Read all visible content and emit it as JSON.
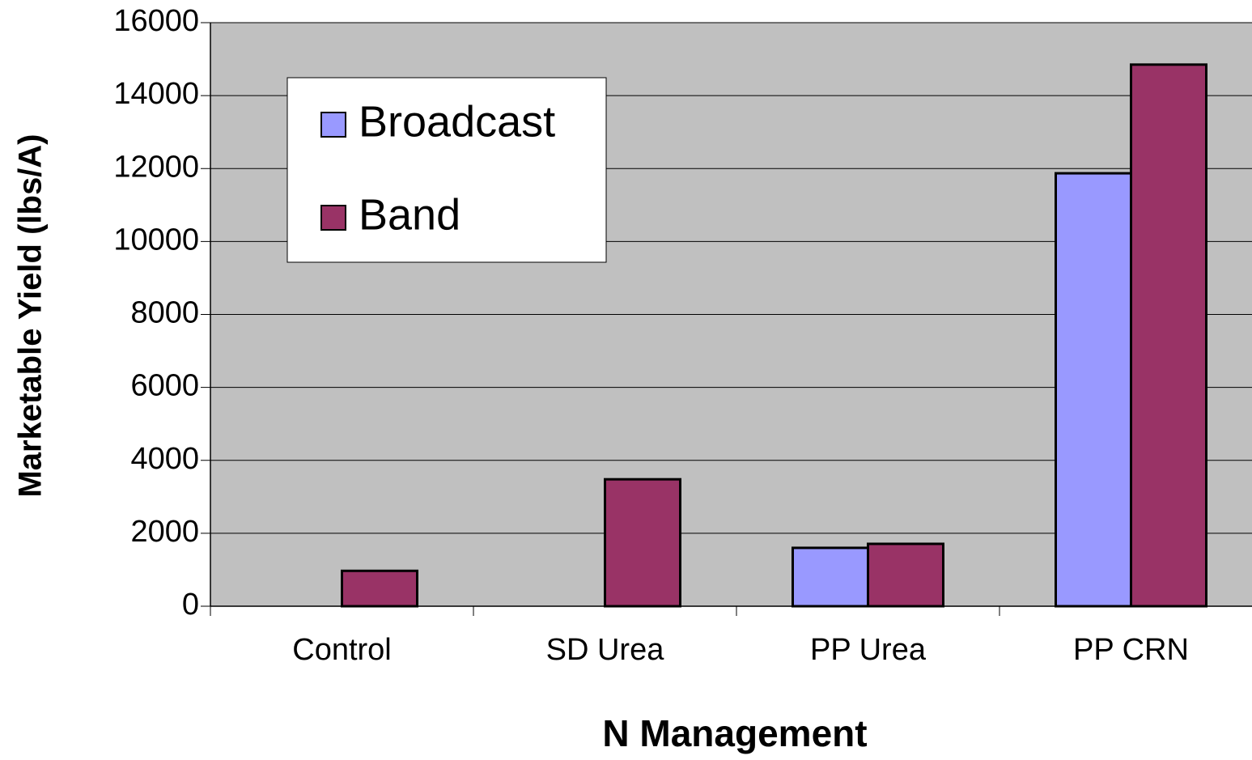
{
  "chart_data": {
    "type": "bar",
    "xlabel": "N Management",
    "ylabel": "Marketable Yield (lbs/A)",
    "categories": [
      "Control",
      "SD Urea",
      "PP Urea",
      "PP CRN"
    ],
    "series": [
      {
        "name": "Broadcast",
        "color": "#9999ff",
        "values": [
          0,
          0,
          1600,
          11870
        ]
      },
      {
        "name": "Band",
        "color": "#993366",
        "values": [
          970,
          3480,
          1710,
          14850
        ]
      }
    ],
    "ylim": [
      0,
      16000
    ],
    "yticks": [
      0,
      2000,
      4000,
      6000,
      8000,
      10000,
      12000,
      14000,
      16000
    ],
    "grid": true,
    "legend": "upper left",
    "background": "#c0c0c0"
  }
}
